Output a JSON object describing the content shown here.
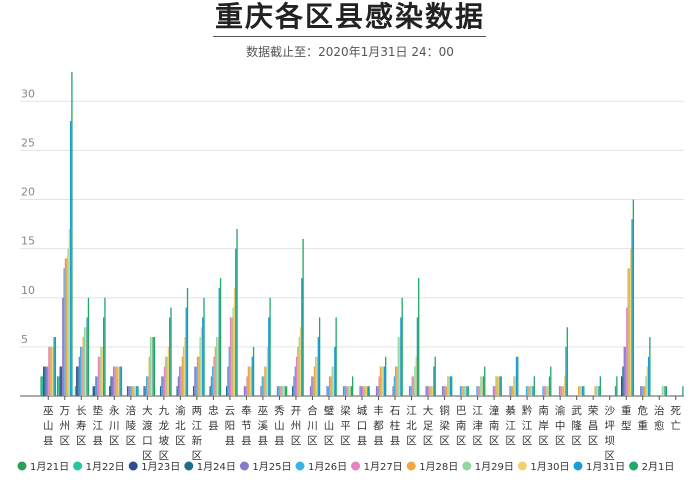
{
  "chart_data": {
    "type": "bar",
    "title": "重庆各区县感染数据",
    "subtitle": "数据截止至：2020年1月31日 24：00",
    "xlabel": "",
    "ylabel": "",
    "ylim": [
      0,
      34
    ],
    "yticks": [
      5,
      10,
      15,
      20,
      25,
      30
    ],
    "grid": true,
    "legend_position": "bottom",
    "categories": [
      "巫山县",
      "万州区",
      "长寿区",
      "垫江县",
      "永川区",
      "涪陵区",
      "大渡口区",
      "九龙坡区",
      "渝北区",
      "两江新区",
      "忠县",
      "云阳县",
      "奉节县",
      "巫溪县",
      "秀山县",
      "开州区",
      "合川区",
      "璧山区",
      "梁平区",
      "城口县",
      "丰都县",
      "石柱县",
      "江北区",
      "大足区",
      "铜梁区",
      "巴南区",
      "江津区",
      "潼南区",
      "綦江区",
      "黔江区",
      "南岸区",
      "渝中区",
      "武隆区",
      "荣昌区",
      "沙坪坝区",
      "重型",
      "危重",
      "治愈",
      "死亡"
    ],
    "series": [
      {
        "name": "1月21日",
        "color": "#2e9e5b",
        "values": [
          2,
          2,
          0,
          0,
          0,
          0,
          0,
          0,
          0,
          0,
          0,
          0,
          0,
          0,
          0,
          0,
          0,
          0,
          0,
          0,
          0,
          0,
          0,
          0,
          0,
          0,
          0,
          0,
          0,
          0,
          0,
          0,
          0,
          0,
          0,
          0,
          0,
          0,
          0
        ]
      },
      {
        "name": "1月22日",
        "color": "#22c5a5",
        "values": [
          2,
          2,
          1,
          0,
          0,
          0,
          0,
          0,
          0,
          0,
          0,
          0,
          0,
          0,
          0,
          0,
          0,
          0,
          0,
          0,
          0,
          0,
          0,
          0,
          0,
          0,
          0,
          0,
          0,
          0,
          0,
          0,
          0,
          0,
          0,
          0,
          0,
          0,
          0
        ]
      },
      {
        "name": "1月23日",
        "color": "#2b4f8c",
        "values": [
          3,
          3,
          3,
          1,
          1,
          0,
          0,
          0,
          0,
          0,
          0,
          0,
          0,
          0,
          0,
          0,
          0,
          0,
          0,
          0,
          0,
          0,
          0,
          0,
          0,
          0,
          0,
          0,
          0,
          0,
          0,
          0,
          0,
          0,
          0,
          2,
          0,
          0,
          0
        ]
      },
      {
        "name": "1月24日",
        "color": "#1f6d8c",
        "values": [
          3,
          3,
          3,
          1,
          2,
          1,
          1,
          1,
          1,
          1,
          1,
          1,
          0,
          0,
          0,
          1,
          0,
          0,
          0,
          0,
          0,
          0,
          0,
          0,
          0,
          0,
          0,
          0,
          0,
          0,
          0,
          0,
          0,
          0,
          0,
          3,
          0,
          0,
          0
        ]
      },
      {
        "name": "1月25日",
        "color": "#8b78c9",
        "values": [
          3,
          10,
          4,
          2,
          2,
          1,
          1,
          2,
          2,
          3,
          2,
          3,
          1,
          1,
          1,
          2,
          1,
          1,
          1,
          1,
          1,
          1,
          1,
          1,
          1,
          0,
          0,
          0,
          0,
          0,
          0,
          0,
          0,
          0,
          0,
          5,
          1,
          0,
          0
        ]
      },
      {
        "name": "1月26日",
        "color": "#3cb3e6",
        "values": [
          3,
          13,
          5,
          2,
          3,
          1,
          2,
          2,
          3,
          3,
          3,
          5,
          1,
          2,
          1,
          3,
          2,
          1,
          1,
          1,
          1,
          2,
          1,
          1,
          1,
          1,
          1,
          1,
          1,
          1,
          1,
          1,
          0,
          0,
          0,
          5,
          1,
          0,
          0
        ]
      },
      {
        "name": "1月27日",
        "color": "#e67fc4",
        "values": [
          5,
          14,
          5,
          4,
          3,
          1,
          2,
          3,
          3,
          4,
          4,
          8,
          2,
          2,
          1,
          4,
          2,
          2,
          1,
          1,
          2,
          3,
          2,
          1,
          1,
          1,
          1,
          1,
          1,
          1,
          1,
          1,
          0,
          0,
          0,
          9,
          1,
          0,
          0
        ]
      },
      {
        "name": "1月28日",
        "color": "#f2a640",
        "values": [
          5,
          14,
          6,
          4,
          3,
          1,
          4,
          4,
          4,
          4,
          5,
          8,
          3,
          3,
          1,
          5,
          3,
          2,
          1,
          1,
          3,
          3,
          2,
          1,
          1,
          1,
          1,
          2,
          1,
          1,
          1,
          1,
          1,
          1,
          0,
          13,
          1,
          0,
          0
        ]
      },
      {
        "name": "1月29日",
        "color": "#8fd9a0",
        "values": [
          5,
          15,
          7,
          5,
          3,
          1,
          6,
          4,
          5,
          6,
          6,
          9,
          3,
          3,
          1,
          6,
          4,
          3,
          1,
          1,
          3,
          6,
          3,
          1,
          2,
          1,
          2,
          2,
          2,
          1,
          1,
          1,
          1,
          1,
          0,
          13,
          2,
          1,
          0
        ]
      },
      {
        "name": "1月30日",
        "color": "#f0cf70",
        "values": [
          5,
          17,
          7,
          5,
          3,
          1,
          6,
          5,
          6,
          7,
          6,
          11,
          3,
          5,
          1,
          7,
          4,
          3,
          1,
          1,
          3,
          6,
          4,
          1,
          2,
          1,
          2,
          2,
          2,
          1,
          1,
          2,
          1,
          1,
          0,
          15,
          3,
          1,
          0
        ]
      },
      {
        "name": "1月31日",
        "color": "#1e9bd6",
        "values": [
          6,
          28,
          8,
          8,
          3,
          1,
          6,
          8,
          9,
          8,
          11,
          15,
          4,
          8,
          1,
          12,
          6,
          5,
          1,
          1,
          3,
          8,
          8,
          3,
          2,
          1,
          2,
          2,
          4,
          1,
          2,
          5,
          1,
          1,
          1,
          18,
          4,
          1,
          0
        ]
      },
      {
        "name": "2月1日",
        "color": "#1fa866",
        "values": [
          6,
          33,
          10,
          10,
          3,
          1,
          6,
          9,
          11,
          10,
          12,
          17,
          5,
          10,
          1,
          16,
          8,
          8,
          2,
          1,
          4,
          10,
          12,
          4,
          2,
          1,
          3,
          2,
          4,
          2,
          3,
          7,
          1,
          2,
          2,
          20,
          6,
          1,
          1
        ]
      }
    ]
  }
}
